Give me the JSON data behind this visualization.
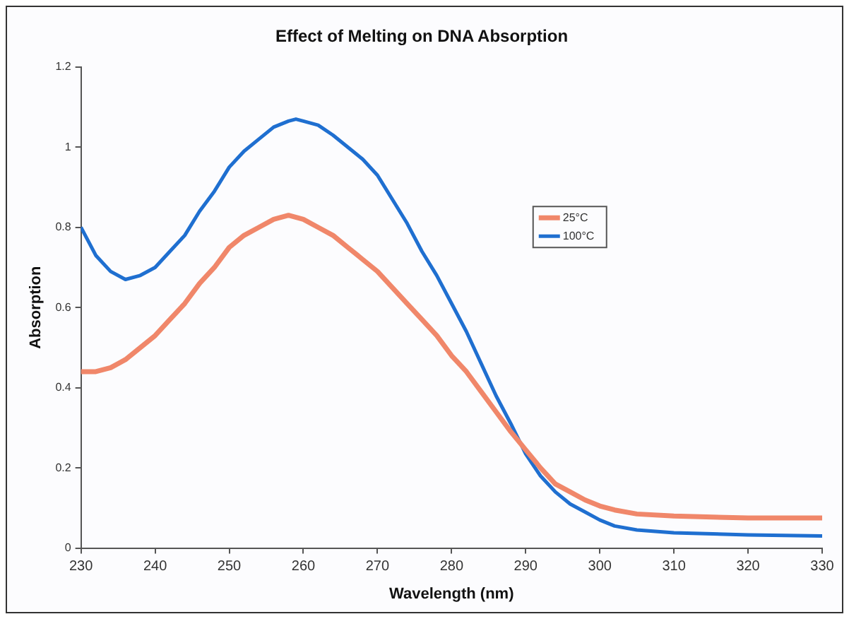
{
  "chart_data": {
    "type": "line",
    "title": "Effect of Melting on DNA Absorption",
    "xlabel": "Wavelength (nm)",
    "ylabel": "Absorption",
    "xlim": [
      230,
      330
    ],
    "xticks": [
      230,
      240,
      250,
      260,
      270,
      280,
      290,
      300,
      310,
      320,
      330
    ],
    "ylim": [
      0,
      1.2
    ],
    "yticks": [
      0,
      0.2,
      0.4,
      0.6,
      0.8,
      1,
      1.2
    ],
    "grid": false,
    "legend": "right",
    "marker": "none",
    "series": [
      {
        "name": "25°C",
        "color": "#f0876a",
        "x": [
          230,
          232,
          234,
          236,
          238,
          240,
          242,
          244,
          246,
          248,
          250,
          252,
          254,
          256,
          258,
          260,
          262,
          264,
          266,
          268,
          270,
          272,
          274,
          276,
          278,
          280,
          282,
          284,
          286,
          288,
          290,
          292,
          294,
          296,
          298,
          300,
          302,
          305,
          310,
          320,
          330
        ],
        "values": [
          0.44,
          0.44,
          0.45,
          0.47,
          0.5,
          0.53,
          0.57,
          0.61,
          0.66,
          0.7,
          0.75,
          0.78,
          0.8,
          0.82,
          0.83,
          0.82,
          0.8,
          0.78,
          0.75,
          0.72,
          0.69,
          0.65,
          0.61,
          0.57,
          0.53,
          0.48,
          0.44,
          0.39,
          0.34,
          0.29,
          0.245,
          0.2,
          0.16,
          0.14,
          0.12,
          0.105,
          0.095,
          0.085,
          0.08,
          0.075,
          0.075
        ]
      },
      {
        "name": "100°C",
        "color": "#1f6fd0",
        "x": [
          230,
          232,
          234,
          236,
          238,
          240,
          242,
          244,
          246,
          248,
          250,
          252,
          254,
          256,
          258,
          259,
          260,
          262,
          264,
          266,
          268,
          270,
          272,
          274,
          276,
          278,
          280,
          282,
          284,
          286,
          288,
          290,
          292,
          294,
          296,
          298,
          300,
          302,
          305,
          310,
          320,
          330
        ],
        "values": [
          0.8,
          0.73,
          0.69,
          0.67,
          0.68,
          0.7,
          0.74,
          0.78,
          0.84,
          0.89,
          0.95,
          0.99,
          1.02,
          1.05,
          1.065,
          1.07,
          1.065,
          1.055,
          1.03,
          1,
          0.97,
          0.93,
          0.87,
          0.81,
          0.74,
          0.68,
          0.61,
          0.54,
          0.46,
          0.38,
          0.31,
          0.235,
          0.18,
          0.14,
          0.11,
          0.09,
          0.07,
          0.055,
          0.045,
          0.038,
          0.033,
          0.03
        ]
      }
    ]
  }
}
